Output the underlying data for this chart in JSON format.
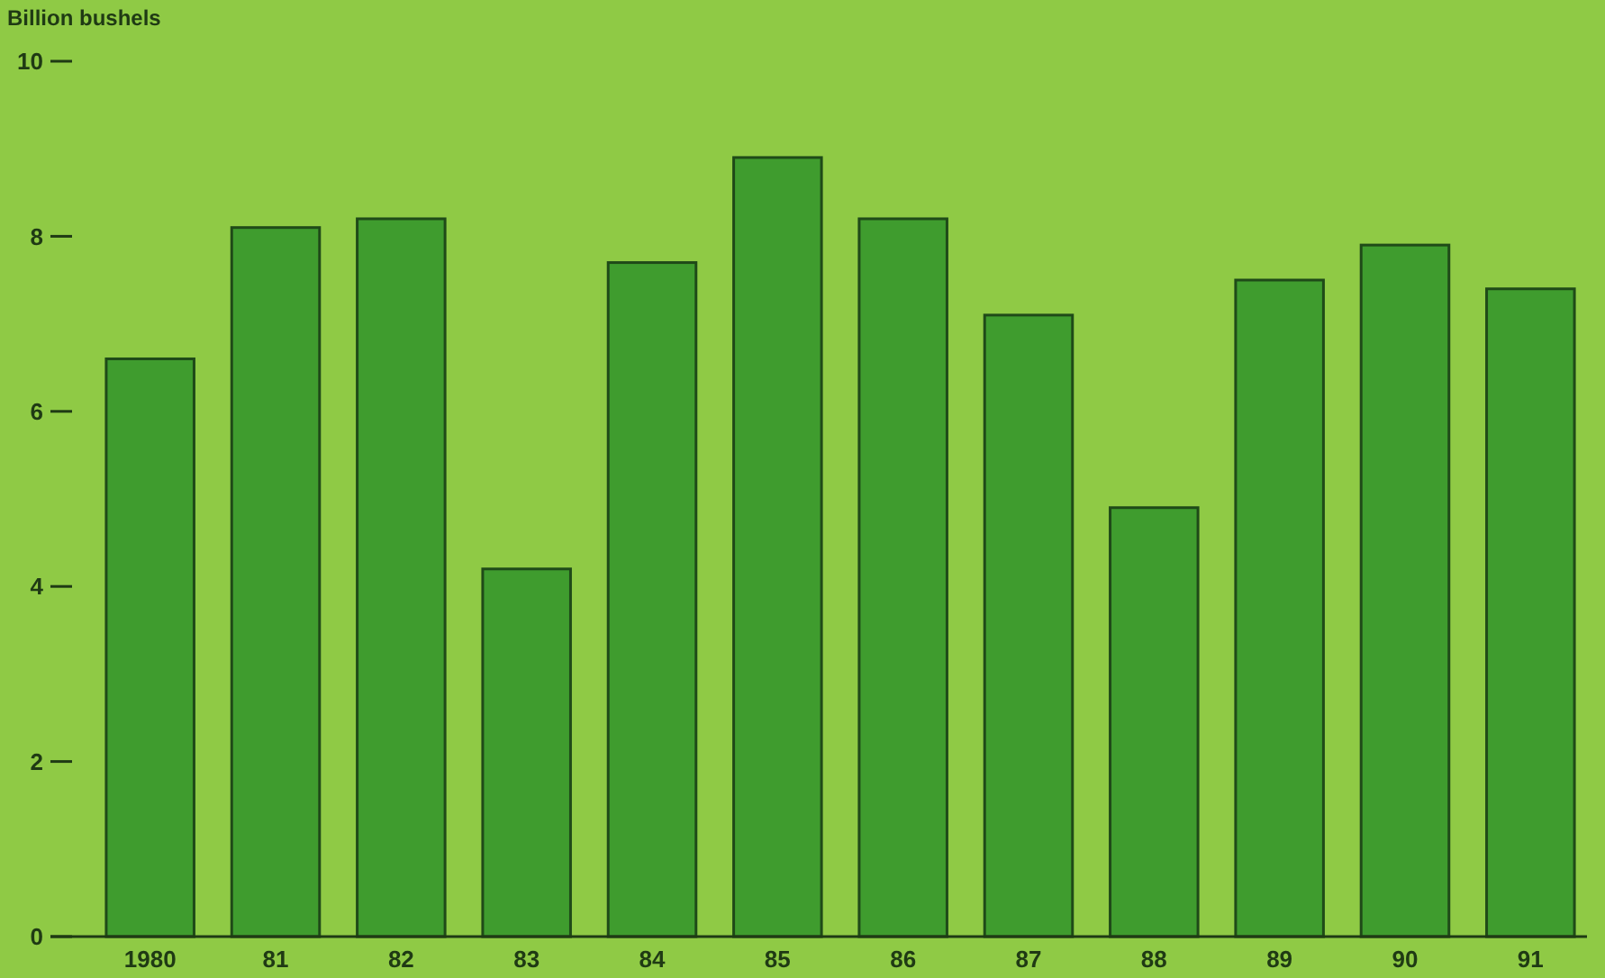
{
  "chart_data": {
    "type": "bar",
    "ylabel": "Billion bushels",
    "categories": [
      "1980",
      "81",
      "82",
      "83",
      "84",
      "85",
      "86",
      "87",
      "88",
      "89",
      "90",
      "91"
    ],
    "values": [
      6.6,
      8.1,
      8.2,
      4.2,
      7.7,
      8.9,
      8.2,
      7.1,
      4.9,
      7.5,
      7.9,
      7.4
    ],
    "color": "#3f9c2e",
    "ylim": [
      0,
      10
    ],
    "yticks": [
      0,
      2,
      4,
      6,
      8,
      10
    ],
    "grid": false
  }
}
